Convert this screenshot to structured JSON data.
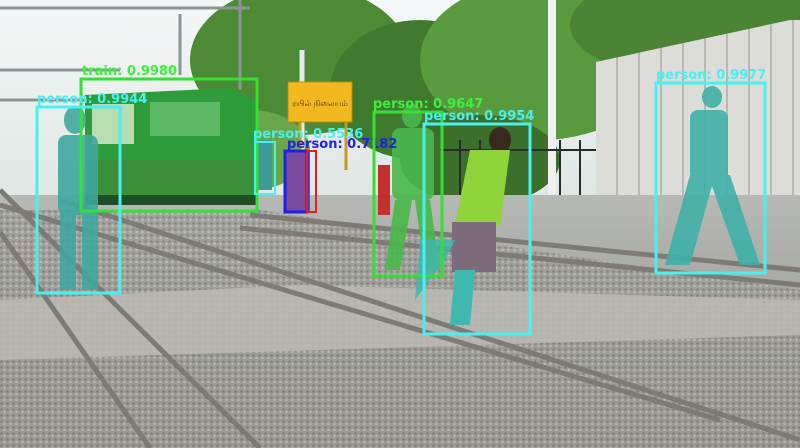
{
  "detections": [
    {
      "label": "train",
      "score": "0.9980",
      "label_color": "#3ef03e",
      "box_color": "#34e034"
    },
    {
      "label": "person",
      "score": "0.9944",
      "label_color": "#48f0f0",
      "box_color": "#48f0f0"
    },
    {
      "label": "person",
      "score": "0.5536",
      "label_color": "#48f0f0",
      "box_color": "#48f0f0"
    },
    {
      "label": "person",
      "score": "0.7182",
      "label_color": "#2020e8",
      "box_color": "#2020e8"
    },
    {
      "label": "person",
      "score": "0.9647",
      "label_color": "#3ef03e",
      "box_color": "#34e034"
    },
    {
      "label": "person",
      "score": "0.9954",
      "label_color": "#48f0f0",
      "box_color": "#48f0f0"
    },
    {
      "label": "person",
      "score": "0.9977",
      "label_color": "#48f0f0",
      "box_color": "#48f0f0"
    }
  ],
  "sign": {
    "text": "ரயில் நிலையம்"
  },
  "colors": {
    "sky": "#eef2f2",
    "foliage": "#4f8a3a",
    "wall": "#d9d9d6",
    "ballast": "#9a9a96",
    "rail": "#8a8580"
  }
}
